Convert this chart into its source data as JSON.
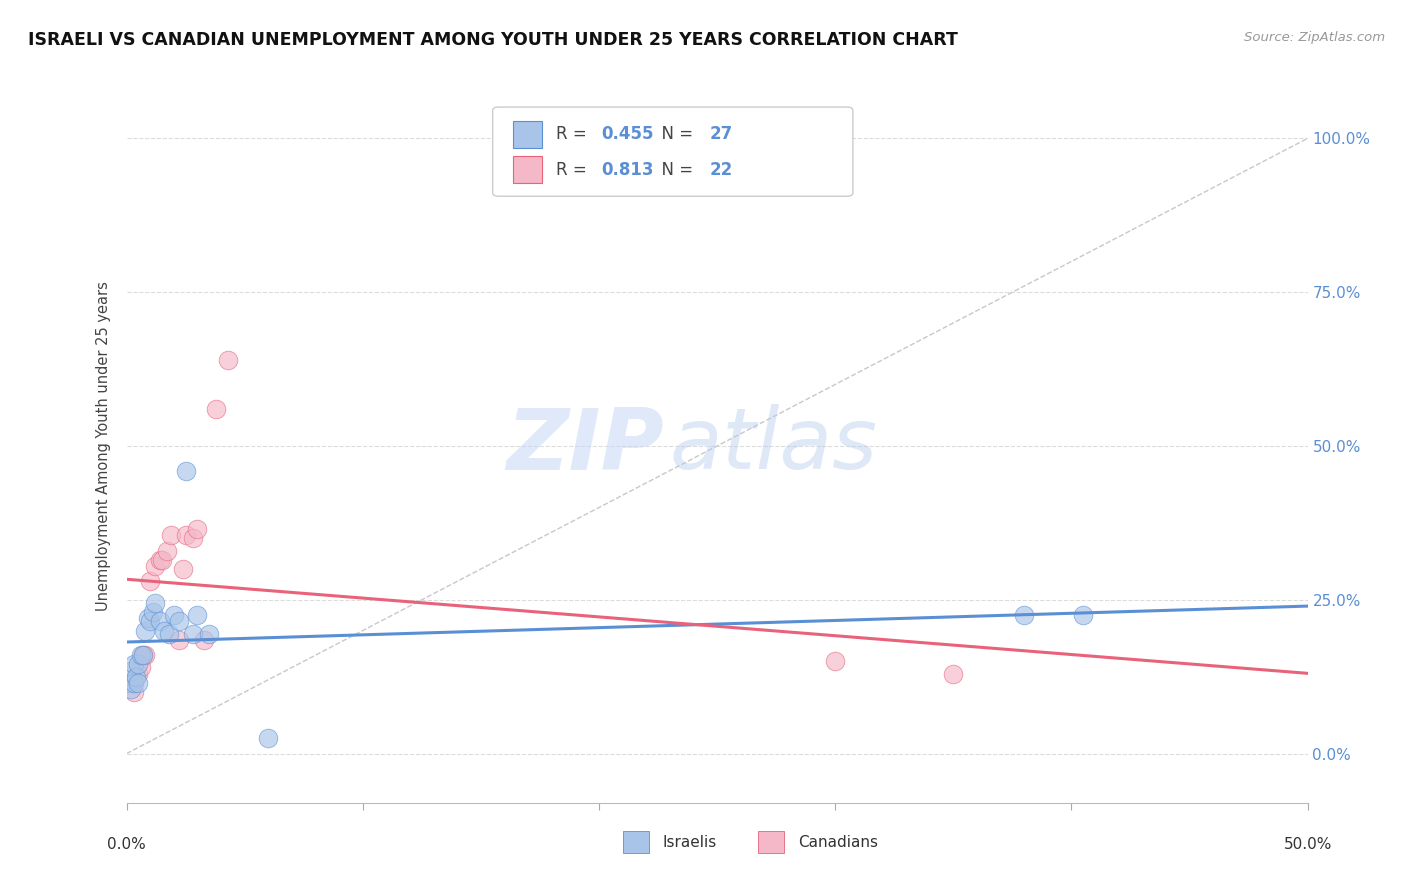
{
  "title": "ISRAELI VS CANADIAN UNEMPLOYMENT AMONG YOUTH UNDER 25 YEARS CORRELATION CHART",
  "source": "Source: ZipAtlas.com",
  "ylabel": "Unemployment Among Youth under 25 years",
  "watermark_zip": "ZIP",
  "watermark_atlas": "atlas",
  "xmin": 0.0,
  "xmax": 0.5,
  "ymin": -0.08,
  "ymax": 1.08,
  "israelis_x": [
    0.001,
    0.002,
    0.002,
    0.003,
    0.003,
    0.004,
    0.005,
    0.005,
    0.006,
    0.007,
    0.008,
    0.009,
    0.01,
    0.011,
    0.012,
    0.014,
    0.016,
    0.018,
    0.02,
    0.022,
    0.025,
    0.028,
    0.03,
    0.035,
    0.06,
    0.38,
    0.405
  ],
  "israelis_y": [
    0.115,
    0.105,
    0.135,
    0.115,
    0.145,
    0.125,
    0.115,
    0.145,
    0.16,
    0.16,
    0.2,
    0.22,
    0.215,
    0.23,
    0.245,
    0.215,
    0.2,
    0.195,
    0.225,
    0.215,
    0.46,
    0.195,
    0.225,
    0.195,
    0.025,
    0.225,
    0.225
  ],
  "canadians_x": [
    0.002,
    0.003,
    0.005,
    0.006,
    0.007,
    0.008,
    0.01,
    0.012,
    0.014,
    0.015,
    0.017,
    0.019,
    0.022,
    0.024,
    0.025,
    0.028,
    0.03,
    0.033,
    0.038,
    0.043,
    0.3,
    0.35
  ],
  "canadians_y": [
    0.115,
    0.1,
    0.13,
    0.14,
    0.16,
    0.16,
    0.28,
    0.305,
    0.315,
    0.315,
    0.33,
    0.355,
    0.185,
    0.3,
    0.355,
    0.35,
    0.365,
    0.185,
    0.56,
    0.64,
    0.15,
    0.13
  ],
  "israeli_fill": "#A8C4E8",
  "israeli_edge": "#5B8FD4",
  "canadian_fill": "#F4B8C8",
  "canadian_edge": "#E8637A",
  "israeli_line_color": "#5B8FD4",
  "canadian_line_color": "#E8637A",
  "diagonal_color": "#C8C8C8",
  "bg_color": "#FFFFFF",
  "grid_color": "#DCDCDC",
  "title_color": "#111111",
  "right_label_color": "#5B8FD4",
  "source_color": "#999999",
  "legend_value_color": "#5B8FD4",
  "legend_n1_color": "#5B8FD4",
  "legend_n2_color": "#E8637A",
  "legend_r1": "0.455",
  "legend_r2": "0.813",
  "legend_n1": "27",
  "legend_n2": "22",
  "ytick_values": [
    0.0,
    0.25,
    0.5,
    0.75,
    1.0
  ],
  "ytick_labels": [
    "0.0%",
    "25.0%",
    "50.0%",
    "75.0%",
    "100.0%"
  ]
}
